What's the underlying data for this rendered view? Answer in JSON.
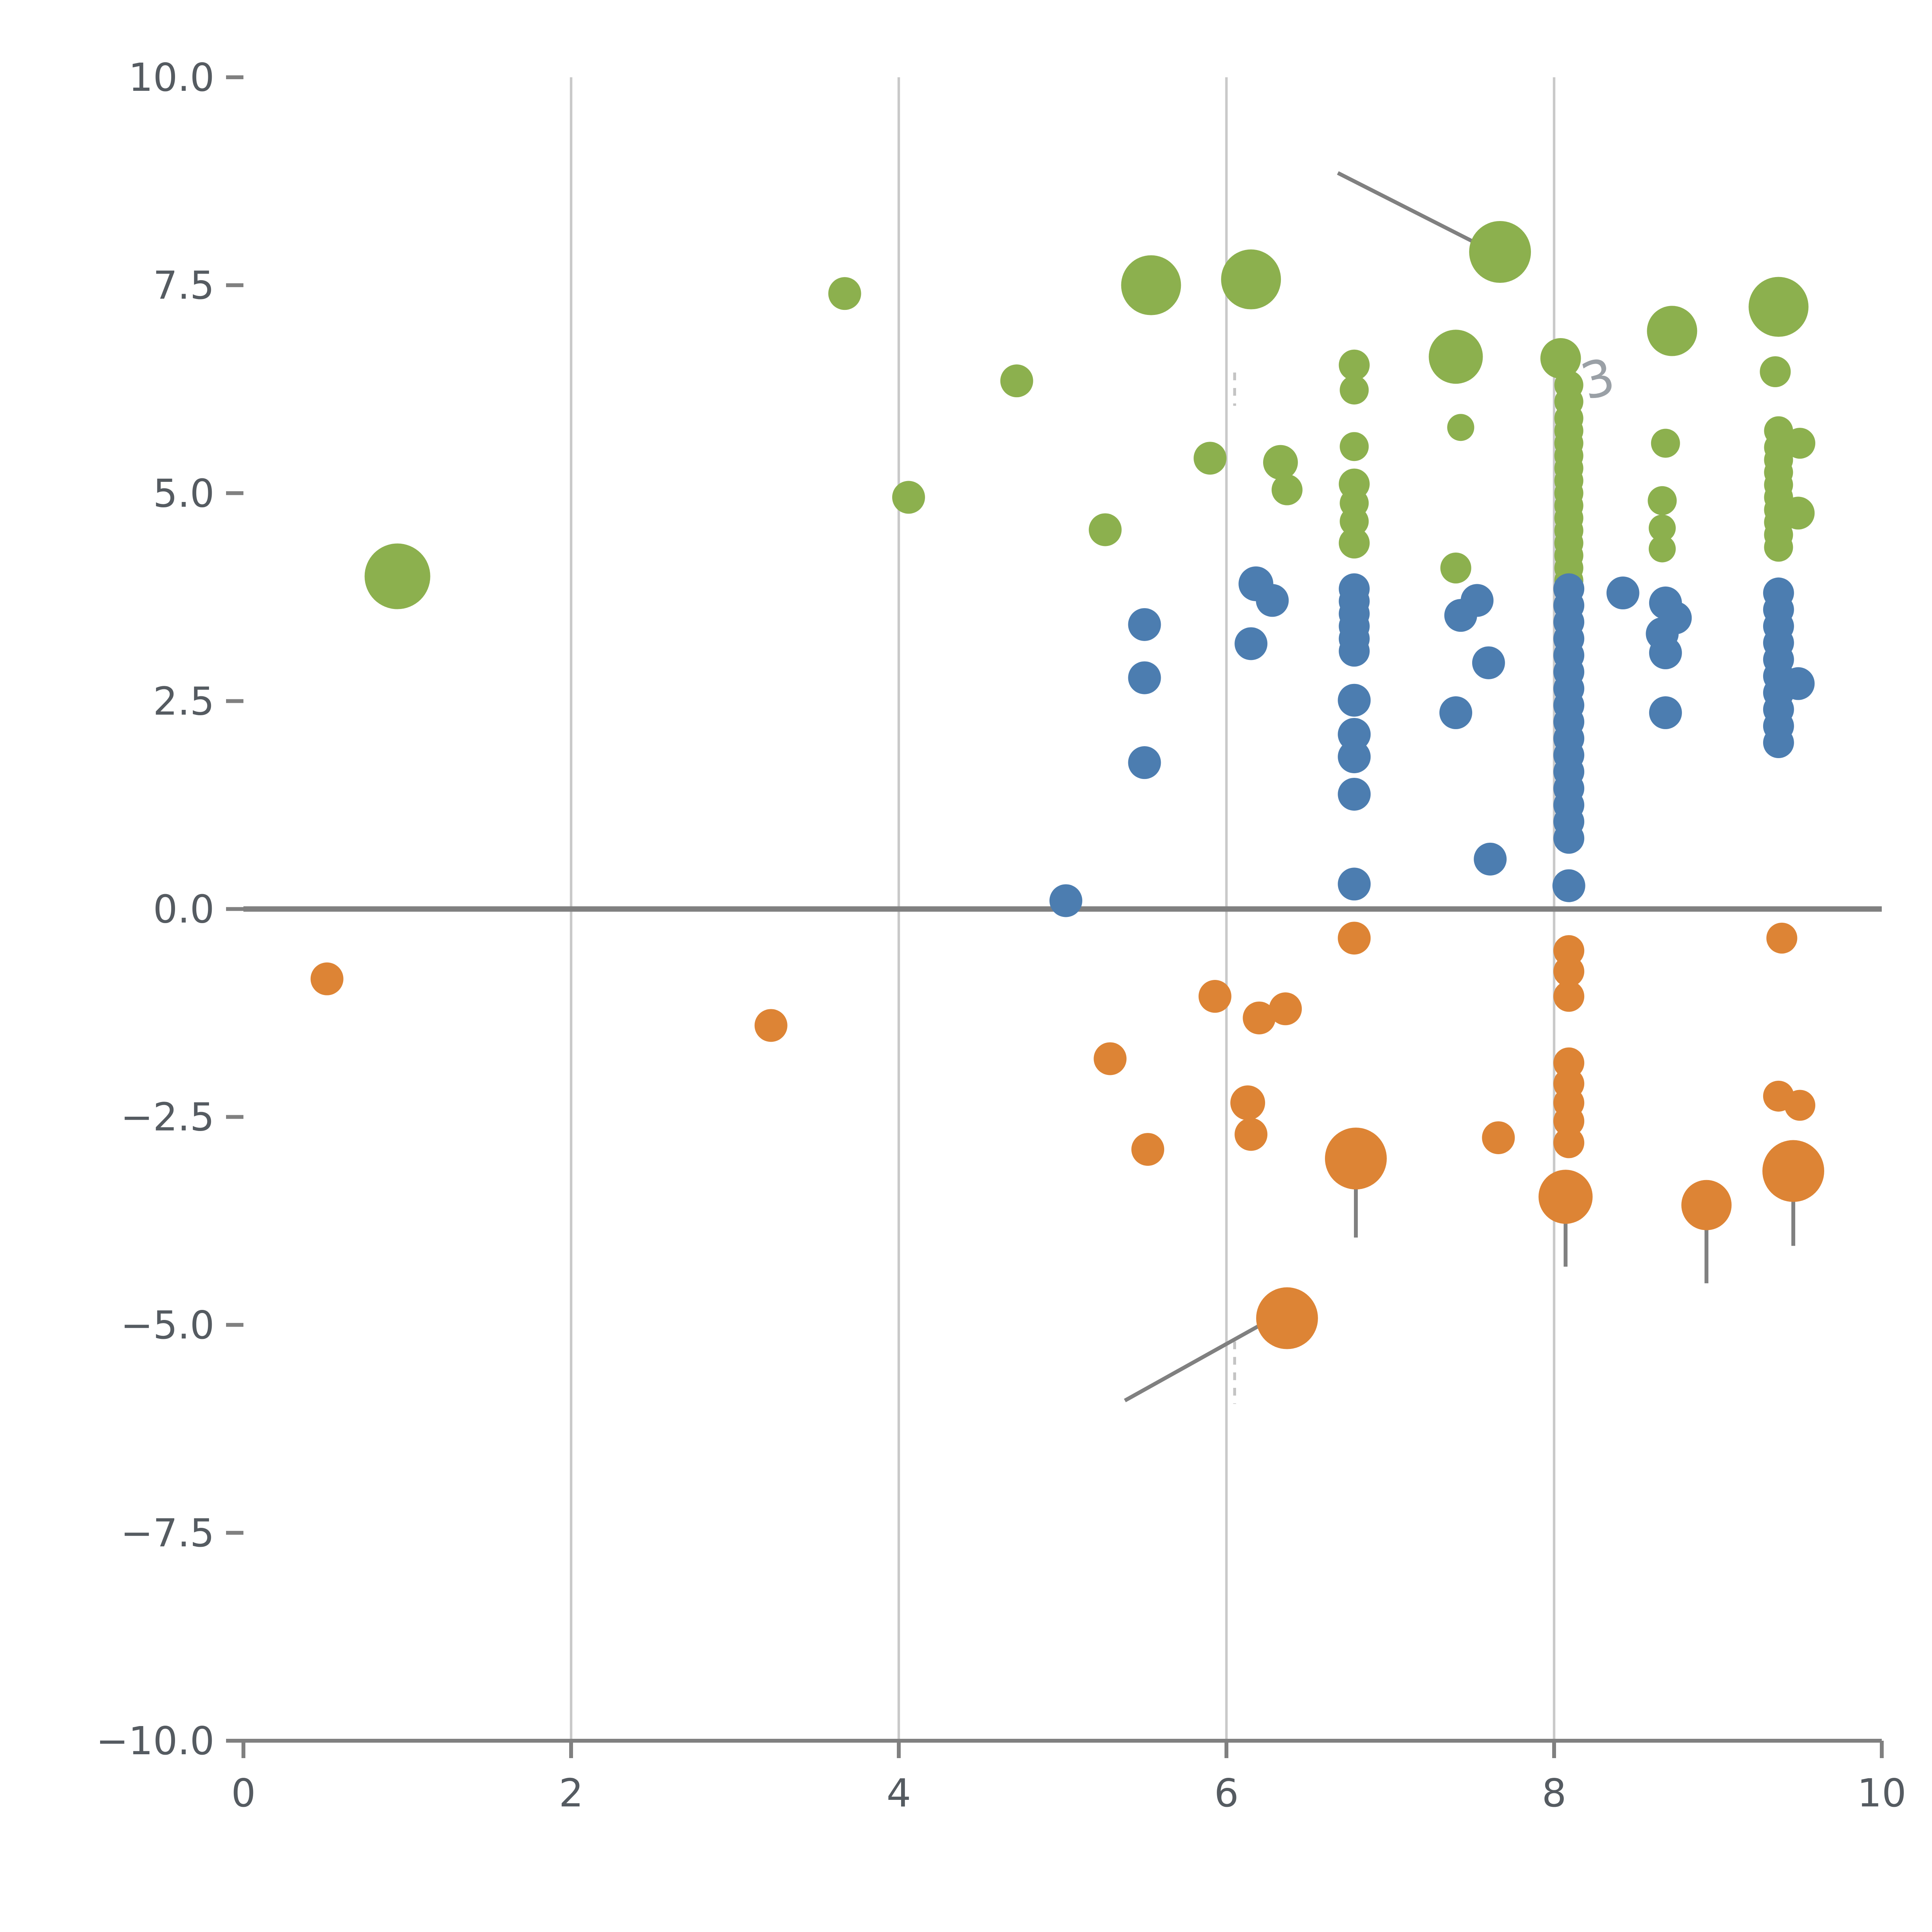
{
  "chart_data": {
    "type": "scatter",
    "title": "",
    "xlabel": "",
    "ylabel": "",
    "xlim": [
      0,
      10
    ],
    "ylim": [
      -10,
      10
    ],
    "x_ticks": {
      "values": [
        0,
        2,
        4,
        6,
        8,
        10
      ],
      "labels": [
        "0",
        "2",
        "4",
        "6",
        "8",
        "10"
      ]
    },
    "y_ticks": {
      "values": [
        -10,
        -7.5,
        -5,
        -2.5,
        0,
        2.5,
        5,
        7.5,
        10
      ],
      "labels": [
        "−10.0",
        "−7.5",
        "−5.0",
        "−2.5",
        "0.0",
        "2.5",
        "5.0",
        "7.5",
        "10.0"
      ]
    },
    "grid_x": [
      2,
      4,
      6,
      8
    ],
    "zero_line_y": 0,
    "legend": "none",
    "colors": {
      "green": "#8CB04E",
      "blue": "#4C7DB0",
      "orange": "#DD8435",
      "grid": "#c9c9c9",
      "zero_line": "#808080",
      "axis_line": "#808080",
      "tick_label": "#555b61",
      "annotation": "#808080",
      "dashed": "#c4c4c4"
    },
    "series": [
      {
        "name": "green-cluster",
        "color": "#8CB04E",
        "points": [
          [
            0.94,
            4.0,
            17
          ],
          [
            3.67,
            7.4,
            8.5
          ],
          [
            4.06,
            4.95,
            8.5
          ],
          [
            4.72,
            6.35,
            8.5
          ],
          [
            5.26,
            4.56,
            8.5
          ],
          [
            5.54,
            7.5,
            15.5
          ],
          [
            5.9,
            5.42,
            8.5
          ],
          [
            6.15,
            7.57,
            15.5
          ],
          [
            6.33,
            5.37,
            9
          ],
          [
            6.37,
            5.04,
            8
          ],
          [
            6.78,
            6.54,
            8
          ],
          [
            6.78,
            6.24,
            7.5
          ],
          [
            6.78,
            5.56,
            7.5
          ],
          [
            6.78,
            5.11,
            8
          ],
          [
            6.78,
            4.88,
            7.5
          ],
          [
            6.78,
            4.66,
            7.5
          ],
          [
            6.78,
            4.4,
            8
          ],
          [
            7.4,
            6.64,
            14
          ],
          [
            7.43,
            5.79,
            7
          ],
          [
            7.4,
            4.1,
            8
          ],
          [
            7.67,
            7.9,
            16
          ],
          [
            8.04,
            6.62,
            10.5
          ],
          [
            8.09,
            6.3,
            7.5
          ],
          [
            8.09,
            6.1,
            7.5
          ],
          [
            8.09,
            5.9,
            7.5
          ],
          [
            8.09,
            5.75,
            7.5
          ],
          [
            8.09,
            5.6,
            7.5
          ],
          [
            8.09,
            5.45,
            7.5
          ],
          [
            8.09,
            5.3,
            7.5
          ],
          [
            8.09,
            5.15,
            7.5
          ],
          [
            8.09,
            5.0,
            7.5
          ],
          [
            8.09,
            4.85,
            7.5
          ],
          [
            8.09,
            4.7,
            7.5
          ],
          [
            8.09,
            4.55,
            7.5
          ],
          [
            8.09,
            4.4,
            7.5
          ],
          [
            8.09,
            4.25,
            7.5
          ],
          [
            8.09,
            4.1,
            7.5
          ],
          [
            8.09,
            3.95,
            7.5
          ],
          [
            8.72,
            6.95,
            13
          ],
          [
            8.68,
            5.6,
            7.5
          ],
          [
            8.66,
            4.91,
            7.5
          ],
          [
            8.66,
            4.58,
            7
          ],
          [
            8.66,
            4.33,
            7
          ],
          [
            9.37,
            7.24,
            15.5
          ],
          [
            9.35,
            6.46,
            8
          ],
          [
            9.37,
            5.75,
            7.5
          ],
          [
            9.37,
            5.55,
            7.5
          ],
          [
            9.37,
            5.4,
            7.5
          ],
          [
            9.37,
            5.25,
            7.5
          ],
          [
            9.37,
            5.1,
            7.5
          ],
          [
            9.37,
            4.95,
            7.5
          ],
          [
            9.37,
            4.8,
            7.5
          ],
          [
            9.37,
            4.65,
            7.5
          ],
          [
            9.37,
            4.5,
            7.5
          ],
          [
            9.37,
            4.35,
            7.5
          ],
          [
            9.5,
            5.6,
            8
          ],
          [
            9.49,
            4.76,
            8.5
          ]
        ]
      },
      {
        "name": "blue-cluster",
        "color": "#4C7DB0",
        "points": [
          [
            5.02,
            0.1,
            8.5
          ],
          [
            5.5,
            3.42,
            8.5
          ],
          [
            5.5,
            2.78,
            8.5
          ],
          [
            5.5,
            1.76,
            8.5
          ],
          [
            6.18,
            3.91,
            9
          ],
          [
            6.28,
            3.71,
            8.5
          ],
          [
            6.15,
            3.19,
            8.5
          ],
          [
            6.78,
            3.85,
            8
          ],
          [
            6.78,
            3.7,
            8
          ],
          [
            6.78,
            3.55,
            8
          ],
          [
            6.78,
            3.4,
            8
          ],
          [
            6.78,
            3.25,
            8
          ],
          [
            6.78,
            3.1,
            8
          ],
          [
            6.78,
            2.51,
            8.5
          ],
          [
            6.78,
            2.1,
            8.5
          ],
          [
            6.78,
            1.83,
            8.5
          ],
          [
            6.78,
            1.38,
            8.5
          ],
          [
            6.78,
            0.3,
            8.5
          ],
          [
            7.43,
            3.53,
            8.5
          ],
          [
            7.53,
            3.71,
            8.5
          ],
          [
            7.6,
            2.96,
            8.5
          ],
          [
            7.4,
            2.36,
            8.5
          ],
          [
            7.61,
            0.6,
            8.5
          ],
          [
            8.09,
            3.85,
            8
          ],
          [
            8.09,
            3.65,
            8
          ],
          [
            8.09,
            3.45,
            8
          ],
          [
            8.09,
            3.25,
            8
          ],
          [
            8.09,
            3.05,
            8
          ],
          [
            8.09,
            2.85,
            8
          ],
          [
            8.09,
            2.65,
            8
          ],
          [
            8.09,
            2.45,
            8
          ],
          [
            8.09,
            2.25,
            8
          ],
          [
            8.09,
            2.05,
            8
          ],
          [
            8.09,
            1.85,
            8
          ],
          [
            8.09,
            1.65,
            8
          ],
          [
            8.09,
            1.45,
            8
          ],
          [
            8.09,
            1.25,
            8
          ],
          [
            8.09,
            1.05,
            8
          ],
          [
            8.09,
            0.85,
            8
          ],
          [
            8.09,
            0.28,
            8.5
          ],
          [
            8.42,
            3.8,
            8.5
          ],
          [
            8.68,
            3.68,
            8.5
          ],
          [
            8.74,
            3.5,
            8.5
          ],
          [
            8.66,
            3.31,
            8.5
          ],
          [
            8.68,
            3.08,
            8.5
          ],
          [
            8.68,
            2.36,
            8.5
          ],
          [
            9.37,
            3.8,
            8
          ],
          [
            9.37,
            3.6,
            8
          ],
          [
            9.37,
            3.4,
            8
          ],
          [
            9.37,
            3.2,
            8
          ],
          [
            9.37,
            3.0,
            8
          ],
          [
            9.37,
            2.8,
            8
          ],
          [
            9.37,
            2.6,
            8
          ],
          [
            9.37,
            2.4,
            8
          ],
          [
            9.37,
            2.2,
            8
          ],
          [
            9.37,
            2.0,
            8
          ],
          [
            9.49,
            2.71,
            8.5
          ]
        ]
      },
      {
        "name": "orange-cluster",
        "color": "#DD8435",
        "points": [
          [
            0.51,
            -0.84,
            8.5
          ],
          [
            3.22,
            -1.4,
            8.5
          ],
          [
            5.29,
            -1.8,
            8.5
          ],
          [
            5.52,
            -2.89,
            8.5
          ],
          [
            5.93,
            -1.05,
            8.5
          ],
          [
            6.2,
            -1.31,
            8.5
          ],
          [
            6.36,
            -1.2,
            8.5
          ],
          [
            6.13,
            -2.33,
            9
          ],
          [
            6.15,
            -2.71,
            8.5
          ],
          [
            6.78,
            -0.35,
            8.5
          ],
          [
            6.79,
            -3.0,
            16
          ],
          [
            6.37,
            -4.92,
            16
          ],
          [
            7.66,
            -2.75,
            8.5
          ],
          [
            8.09,
            -0.5,
            8
          ],
          [
            8.09,
            -0.75,
            8
          ],
          [
            8.09,
            -1.05,
            8
          ],
          [
            8.09,
            -1.85,
            8
          ],
          [
            8.09,
            -2.1,
            8
          ],
          [
            8.09,
            -2.33,
            8
          ],
          [
            8.09,
            -2.55,
            8
          ],
          [
            8.09,
            -2.81,
            8
          ],
          [
            8.07,
            -3.46,
            14
          ],
          [
            8.93,
            -3.56,
            13
          ],
          [
            9.37,
            -2.25,
            8
          ],
          [
            9.5,
            -2.36,
            8
          ],
          [
            9.46,
            -3.15,
            16
          ],
          [
            9.39,
            -0.35,
            8
          ]
        ]
      }
    ],
    "error_bars": [
      {
        "x": 6.79,
        "y1": -3.0,
        "y2": -3.95
      },
      {
        "x": 8.07,
        "y1": -3.46,
        "y2": -4.3
      },
      {
        "x": 8.93,
        "y1": -3.56,
        "y2": -4.5
      },
      {
        "x": 9.46,
        "y1": -3.15,
        "y2": -4.05
      }
    ],
    "annotation_lines": [
      {
        "x1": 6.68,
        "y1": 8.85,
        "x2": 7.58,
        "y2": 7.95,
        "color": "#808080",
        "width": 2
      },
      {
        "x1": 5.38,
        "y1": -5.91,
        "x2": 6.3,
        "y2": -4.9,
        "color": "#808080",
        "width": 2
      },
      {
        "x1": 9.33,
        "y1": 6.95,
        "x2": 9.42,
        "y2": 7.5,
        "color": "#e3e3e3",
        "width": 2
      }
    ],
    "dashed_segments": [
      {
        "x1": 6.05,
        "y1": 6.45,
        "x2": 6.05,
        "y2": 6.05
      },
      {
        "x1": 6.05,
        "y1": -5.2,
        "x2": 6.05,
        "y2": -5.95
      }
    ],
    "annotation_texts": [
      {
        "text": "3",
        "x": 8.2,
        "y": 6.12,
        "color": "#9aa0a6",
        "size": 26,
        "rotate": -15
      }
    ]
  }
}
